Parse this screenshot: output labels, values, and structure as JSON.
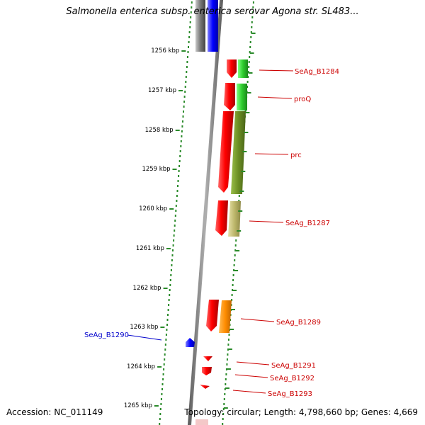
{
  "header": {
    "title": "Salmonella enterica subsp. enterica serovar Agona str. SL483..."
  },
  "footer": {
    "accession": "Accession: NC_011149",
    "summary": "Topology: circular; Length: 4,798,660 bp; Genes: 4,669"
  },
  "colors": {
    "backbone": "#8a8a8a",
    "tick": "#2a8a2a",
    "label_red": "#cc0000",
    "label_blue": "#0000cc"
  },
  "kbp_ticks": [
    "1256 kbp",
    "1257 kbp",
    "1258 kbp",
    "1259 kbp",
    "1260 kbp",
    "1261 kbp",
    "1262 kbp",
    "1263 kbp",
    "1264 kbp",
    "1265 kbp"
  ],
  "genes": [
    {
      "name": "SeAg_B1284",
      "color": "#2ecc2e"
    },
    {
      "name": "proQ",
      "color": "#2ecc2e"
    },
    {
      "name": "prc",
      "color": "#6b8e23"
    },
    {
      "name": "SeAg_B1287",
      "color": "#bdb76b"
    },
    {
      "name": "SeAg_B1289",
      "color": "#ff8c00"
    },
    {
      "name": "SeAg_B1290",
      "color": "#0000ff"
    },
    {
      "name": "SeAg_B1291",
      "color": "#ff0000"
    },
    {
      "name": "SeAg_B1292",
      "color": "#ff0000"
    },
    {
      "name": "SeAg_B1293",
      "color": "#ff0000"
    }
  ]
}
